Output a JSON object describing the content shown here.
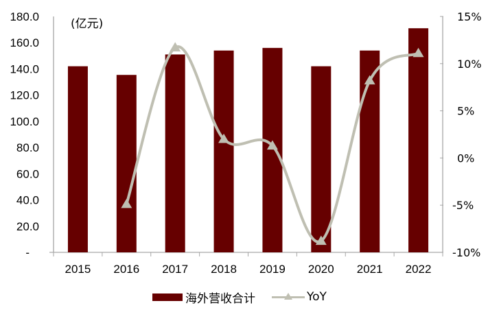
{
  "chart_data": {
    "type": "bar+line",
    "title": "",
    "unit_label": "(亿元)",
    "categories": [
      "2015",
      "2016",
      "2017",
      "2018",
      "2019",
      "2020",
      "2021",
      "2022"
    ],
    "series": [
      {
        "name": "海外营收合计",
        "type": "bar",
        "axis": "left",
        "color": "#660000",
        "values": [
          142.0,
          135.4,
          151.0,
          154.0,
          156.0,
          142.0,
          154.0,
          171.0
        ]
      },
      {
        "name": "YoY",
        "type": "line",
        "axis": "right",
        "color": "#bfbfb2",
        "marker": "triangle",
        "smooth": true,
        "values": [
          null,
          -4.9,
          11.7,
          2.0,
          1.3,
          -8.8,
          8.2,
          11.1
        ]
      }
    ],
    "left_axis": {
      "ylim": [
        0,
        180
      ],
      "ticks": [
        0,
        20,
        40,
        60,
        80,
        100,
        120,
        140,
        160,
        180
      ],
      "tick_labels": [
        "-",
        "20.0",
        "40.0",
        "60.0",
        "80.0",
        "100.0",
        "120.0",
        "140.0",
        "160.0",
        "180.0"
      ]
    },
    "right_axis": {
      "ylim": [
        -10,
        15
      ],
      "ticks": [
        -10,
        -5,
        0,
        5,
        10,
        15
      ],
      "tick_labels": [
        "-10%",
        "-5%",
        "0%",
        "5%",
        "10%",
        "15%"
      ]
    },
    "xlabel": "",
    "ylabel": "",
    "grid": false,
    "legend": {
      "position": "bottom",
      "entries": [
        "海外营收合计",
        "YoY"
      ]
    }
  }
}
